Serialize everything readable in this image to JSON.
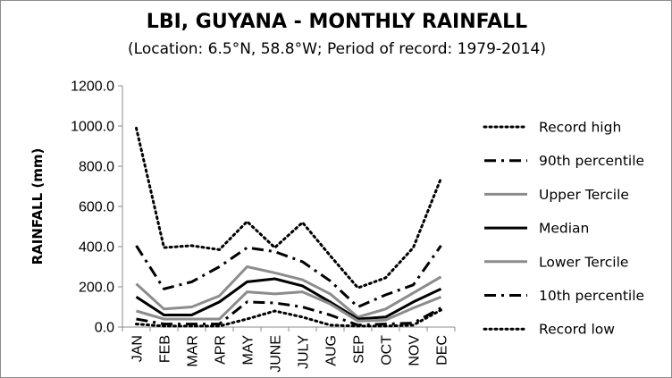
{
  "chart_data": {
    "type": "line",
    "title": "LBI, GUYANA - MONTHLY RAINFALL",
    "subtitle": "(Location: 6.5°N, 58.8°W; Period of record: 1979-2014)",
    "xlabel": "",
    "ylabel": "RAINFALL (mm)",
    "ylim": [
      0,
      1200
    ],
    "yticks": [
      "0.0",
      "200.0",
      "400.0",
      "600.0",
      "800.0",
      "1000.0",
      "1200.0"
    ],
    "categories": [
      "JAN",
      "FEB",
      "MAR",
      "APR",
      "MAY",
      "JUNE",
      "JULY",
      "AUG",
      "SEP",
      "OCT",
      "NOV",
      "DEC"
    ],
    "grid": false,
    "legend_position": "right",
    "series": [
      {
        "name": "Record high",
        "style": "dotted",
        "color": "#000000",
        "width": 3,
        "values": [
          990,
          395,
          405,
          385,
          525,
          395,
          520,
          355,
          195,
          245,
          395,
          740
        ]
      },
      {
        "name": "90th percentile",
        "style": "dashdot",
        "color": "#000000",
        "width": 3,
        "values": [
          405,
          190,
          225,
          300,
          395,
          375,
          325,
          230,
          100,
          160,
          210,
          405
        ]
      },
      {
        "name": "Upper Tercile",
        "style": "solid",
        "color": "#8c8c8c",
        "width": 3,
        "values": [
          215,
          90,
          100,
          155,
          300,
          270,
          235,
          165,
          50,
          90,
          170,
          250
        ]
      },
      {
        "name": "Median",
        "style": "solid",
        "color": "#000000",
        "width": 3,
        "values": [
          150,
          60,
          60,
          125,
          225,
          240,
          205,
          125,
          40,
          50,
          125,
          190
        ]
      },
      {
        "name": "Lower Tercile",
        "style": "solid",
        "color": "#8c8c8c",
        "width": 3,
        "values": [
          80,
          40,
          40,
          40,
          175,
          165,
          175,
          115,
          30,
          35,
          95,
          150
        ]
      },
      {
        "name": "10th percentile",
        "style": "dashdot",
        "color": "#000000",
        "width": 3,
        "values": [
          40,
          15,
          15,
          15,
          125,
          120,
          100,
          60,
          10,
          15,
          20,
          95
        ]
      },
      {
        "name": "Record low",
        "style": "dotted",
        "color": "#000000",
        "width": 3,
        "values": [
          15,
          5,
          5,
          5,
          40,
          80,
          50,
          10,
          5,
          5,
          10,
          85
        ]
      }
    ]
  }
}
